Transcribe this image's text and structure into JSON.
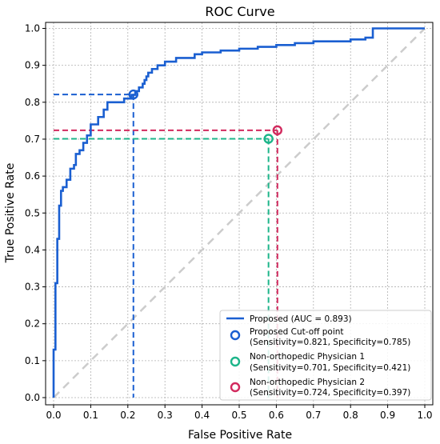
{
  "chart_data": {
    "type": "line",
    "title": "ROC Curve",
    "xlabel": "False Positive Rate",
    "ylabel": "True Positive Rate",
    "xlim": [
      0.0,
      1.0
    ],
    "ylim": [
      0.0,
      1.0
    ],
    "x_ticks": [
      "0.0",
      "0.1",
      "0.2",
      "0.3",
      "0.4",
      "0.5",
      "0.6",
      "0.7",
      "0.8",
      "0.9",
      "1.0"
    ],
    "y_ticks": [
      "0.0",
      "0.1",
      "0.2",
      "0.3",
      "0.4",
      "0.5",
      "0.6",
      "0.7",
      "0.8",
      "0.9",
      "1.0"
    ],
    "grid": true,
    "legend_position": "bottom-right",
    "colors": {
      "roc": "#1a5fd1",
      "cutoff": "#1a5fd1",
      "physician1": "#1db58a",
      "physician2": "#d22a5e",
      "chance": "#cccccc"
    },
    "series": [
      {
        "name": "Proposed (AUC = 0.893)",
        "kind": "roc",
        "x": [
          0.0,
          0.0,
          0.005,
          0.005,
          0.01,
          0.01,
          0.015,
          0.015,
          0.02,
          0.02,
          0.025,
          0.025,
          0.035,
          0.035,
          0.045,
          0.045,
          0.055,
          0.055,
          0.06,
          0.06,
          0.07,
          0.07,
          0.08,
          0.08,
          0.09,
          0.09,
          0.1,
          0.1,
          0.12,
          0.12,
          0.135,
          0.135,
          0.145,
          0.145,
          0.19,
          0.19,
          0.21,
          0.21,
          0.22,
          0.22,
          0.23,
          0.23,
          0.24,
          0.24,
          0.245,
          0.245,
          0.25,
          0.25,
          0.255,
          0.255,
          0.265,
          0.265,
          0.28,
          0.28,
          0.3,
          0.3,
          0.33,
          0.33,
          0.38,
          0.38,
          0.4,
          0.4,
          0.45,
          0.45,
          0.5,
          0.5,
          0.55,
          0.55,
          0.6,
          0.6,
          0.65,
          0.65,
          0.7,
          0.7,
          0.8,
          0.8,
          0.84,
          0.84,
          0.86,
          0.86,
          1.0
        ],
        "y": [
          0.0,
          0.13,
          0.13,
          0.31,
          0.31,
          0.43,
          0.43,
          0.52,
          0.52,
          0.56,
          0.56,
          0.57,
          0.57,
          0.59,
          0.59,
          0.62,
          0.62,
          0.63,
          0.63,
          0.66,
          0.66,
          0.67,
          0.67,
          0.69,
          0.69,
          0.71,
          0.71,
          0.74,
          0.74,
          0.76,
          0.76,
          0.78,
          0.78,
          0.8,
          0.8,
          0.81,
          0.81,
          0.82,
          0.82,
          0.83,
          0.83,
          0.84,
          0.84,
          0.85,
          0.85,
          0.86,
          0.86,
          0.87,
          0.87,
          0.88,
          0.88,
          0.89,
          0.89,
          0.9,
          0.9,
          0.91,
          0.91,
          0.92,
          0.92,
          0.93,
          0.93,
          0.935,
          0.935,
          0.94,
          0.94,
          0.945,
          0.945,
          0.95,
          0.95,
          0.955,
          0.955,
          0.96,
          0.96,
          0.965,
          0.965,
          0.97,
          0.97,
          0.975,
          0.975,
          1.0,
          1.0
        ]
      },
      {
        "name": "Proposed Cut-off point",
        "detail": "(Sensitivity=0.821, Specificity=0.785)",
        "kind": "point",
        "color_key": "cutoff",
        "x": 0.215,
        "y": 0.821
      },
      {
        "name": "Non-orthopedic Physician 1",
        "detail": "(Sensitivity=0.701, Specificity=0.421)",
        "kind": "point",
        "color_key": "physician1",
        "x": 0.579,
        "y": 0.701
      },
      {
        "name": "Non-orthopedic Physician 2",
        "detail": "(Sensitivity=0.724, Specificity=0.397)",
        "kind": "point",
        "color_key": "physician2",
        "x": 0.603,
        "y": 0.724
      }
    ]
  }
}
